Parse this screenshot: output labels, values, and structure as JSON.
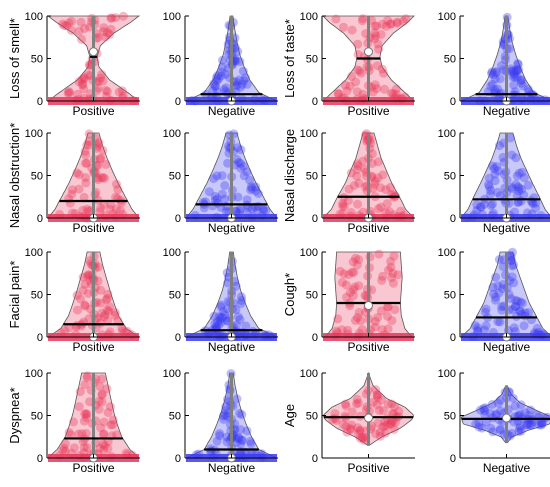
{
  "figure": {
    "colors": {
      "positive": "#e8365a",
      "negative": "#3b3bf0",
      "median_line": "#000000",
      "iqr_line": "#808080",
      "background": "#ffffff"
    }
  },
  "chart_data": [
    {
      "type": "violin",
      "ylabel": "Loss of smell*",
      "x_label": "Positive",
      "ylim": [
        0,
        100
      ],
      "yticks": [
        0,
        50,
        100
      ],
      "group": "positive",
      "median_marker": 58,
      "mean_line": 52,
      "density": [
        [
          0,
          1.0
        ],
        [
          10,
          0.75
        ],
        [
          25,
          0.35
        ],
        [
          40,
          0.12
        ],
        [
          52,
          0.08
        ],
        [
          65,
          0.15
        ],
        [
          80,
          0.45
        ],
        [
          92,
          0.8
        ],
        [
          100,
          1.0
        ]
      ]
    },
    {
      "type": "violin",
      "ylabel": "",
      "x_label": "Negative",
      "ylim": [
        0,
        100
      ],
      "yticks": [
        0,
        50,
        100
      ],
      "group": "negative",
      "median_marker": 0,
      "mean_line": 8,
      "density": [
        [
          0,
          1.0
        ],
        [
          10,
          0.6
        ],
        [
          25,
          0.4
        ],
        [
          40,
          0.28
        ],
        [
          55,
          0.18
        ],
        [
          70,
          0.12
        ],
        [
          85,
          0.07
        ],
        [
          100,
          0.03
        ]
      ]
    },
    {
      "type": "violin",
      "ylabel": "Loss of taste*",
      "x_label": "Positive",
      "ylim": [
        0,
        100
      ],
      "yticks": [
        0,
        50,
        100
      ],
      "group": "positive",
      "median_marker": 58,
      "mean_line": 50,
      "density": [
        [
          0,
          1.0
        ],
        [
          10,
          0.8
        ],
        [
          25,
          0.5
        ],
        [
          40,
          0.3
        ],
        [
          52,
          0.25
        ],
        [
          65,
          0.3
        ],
        [
          80,
          0.55
        ],
        [
          92,
          0.85
        ],
        [
          100,
          1.0
        ]
      ]
    },
    {
      "type": "violin",
      "ylabel": "",
      "x_label": "Negative",
      "ylim": [
        0,
        100
      ],
      "yticks": [
        0,
        50,
        100
      ],
      "group": "negative",
      "median_marker": 0,
      "mean_line": 8,
      "density": [
        [
          0,
          1.0
        ],
        [
          10,
          0.6
        ],
        [
          25,
          0.42
        ],
        [
          40,
          0.3
        ],
        [
          55,
          0.2
        ],
        [
          70,
          0.12
        ],
        [
          85,
          0.07
        ],
        [
          100,
          0.03
        ]
      ]
    },
    {
      "type": "violin",
      "ylabel": "Nasal obstruction*",
      "x_label": "Positive",
      "ylim": [
        0,
        100
      ],
      "yticks": [
        0,
        50,
        100
      ],
      "group": "positive",
      "median_marker": 0,
      "mean_line": 20,
      "density": [
        [
          0,
          1.0
        ],
        [
          10,
          0.85
        ],
        [
          25,
          0.7
        ],
        [
          40,
          0.55
        ],
        [
          55,
          0.42
        ],
        [
          70,
          0.3
        ],
        [
          85,
          0.2
        ],
        [
          100,
          0.12
        ]
      ]
    },
    {
      "type": "violin",
      "ylabel": "",
      "x_label": "Negative",
      "ylim": [
        0,
        100
      ],
      "yticks": [
        0,
        50,
        100
      ],
      "group": "negative",
      "median_marker": 0,
      "mean_line": 16,
      "density": [
        [
          0,
          1.0
        ],
        [
          10,
          0.85
        ],
        [
          25,
          0.7
        ],
        [
          40,
          0.55
        ],
        [
          55,
          0.42
        ],
        [
          70,
          0.3
        ],
        [
          85,
          0.2
        ],
        [
          100,
          0.12
        ]
      ]
    },
    {
      "type": "violin",
      "ylabel": "Nasal discharge",
      "x_label": "Positive",
      "ylim": [
        0,
        100
      ],
      "yticks": [
        0,
        50,
        100
      ],
      "group": "positive",
      "median_marker": 0,
      "mean_line": 25,
      "density": [
        [
          0,
          1.0
        ],
        [
          10,
          0.82
        ],
        [
          25,
          0.68
        ],
        [
          40,
          0.52
        ],
        [
          55,
          0.4
        ],
        [
          70,
          0.28
        ],
        [
          85,
          0.2
        ],
        [
          100,
          0.12
        ]
      ]
    },
    {
      "type": "violin",
      "ylabel": "",
      "x_label": "Negative",
      "ylim": [
        0,
        100
      ],
      "yticks": [
        0,
        50,
        100
      ],
      "group": "negative",
      "median_marker": 0,
      "mean_line": 22,
      "density": [
        [
          0,
          1.0
        ],
        [
          10,
          0.85
        ],
        [
          25,
          0.72
        ],
        [
          40,
          0.58
        ],
        [
          55,
          0.45
        ],
        [
          70,
          0.32
        ],
        [
          85,
          0.22
        ],
        [
          100,
          0.14
        ]
      ]
    },
    {
      "type": "violin",
      "ylabel": "Facial pain*",
      "x_label": "Positive",
      "ylim": [
        0,
        100
      ],
      "yticks": [
        0,
        50,
        100
      ],
      "group": "positive",
      "median_marker": 0,
      "mean_line": 15,
      "density": [
        [
          0,
          1.0
        ],
        [
          10,
          0.72
        ],
        [
          25,
          0.55
        ],
        [
          40,
          0.45
        ],
        [
          55,
          0.36
        ],
        [
          70,
          0.28
        ],
        [
          85,
          0.2
        ],
        [
          100,
          0.14
        ]
      ]
    },
    {
      "type": "violin",
      "ylabel": "",
      "x_label": "Negative",
      "ylim": [
        0,
        100
      ],
      "yticks": [
        0,
        50,
        100
      ],
      "group": "negative",
      "median_marker": 0,
      "mean_line": 8,
      "density": [
        [
          0,
          1.0
        ],
        [
          10,
          0.6
        ],
        [
          25,
          0.42
        ],
        [
          40,
          0.3
        ],
        [
          55,
          0.2
        ],
        [
          70,
          0.13
        ],
        [
          85,
          0.08
        ],
        [
          100,
          0.04
        ]
      ]
    },
    {
      "type": "violin",
      "ylabel": "Cough*",
      "x_label": "Positive",
      "ylim": [
        0,
        100
      ],
      "yticks": [
        0,
        50,
        100
      ],
      "group": "positive",
      "median_marker": 37,
      "mean_line": 40,
      "density": [
        [
          0,
          0.95
        ],
        [
          10,
          0.8
        ],
        [
          25,
          0.72
        ],
        [
          40,
          0.7
        ],
        [
          55,
          0.72
        ],
        [
          70,
          0.74
        ],
        [
          85,
          0.72
        ],
        [
          100,
          0.7
        ]
      ]
    },
    {
      "type": "violin",
      "ylabel": "",
      "x_label": "Negative",
      "ylim": [
        0,
        100
      ],
      "yticks": [
        0,
        50,
        100
      ],
      "group": "negative",
      "median_marker": 0,
      "mean_line": 23,
      "density": [
        [
          0,
          1.0
        ],
        [
          10,
          0.8
        ],
        [
          25,
          0.65
        ],
        [
          40,
          0.5
        ],
        [
          55,
          0.4
        ],
        [
          70,
          0.3
        ],
        [
          85,
          0.2
        ],
        [
          100,
          0.14
        ]
      ]
    },
    {
      "type": "violin",
      "ylabel": "Dyspnea*",
      "x_label": "Positive",
      "ylim": [
        0,
        100
      ],
      "yticks": [
        0,
        50,
        100
      ],
      "group": "positive",
      "median_marker": 0,
      "mean_line": 23,
      "density": [
        [
          0,
          1.0
        ],
        [
          10,
          0.8
        ],
        [
          25,
          0.62
        ],
        [
          40,
          0.52
        ],
        [
          55,
          0.44
        ],
        [
          70,
          0.38
        ],
        [
          85,
          0.32
        ],
        [
          100,
          0.26
        ]
      ]
    },
    {
      "type": "violin",
      "ylabel": "",
      "x_label": "Negative",
      "ylim": [
        0,
        100
      ],
      "yticks": [
        0,
        50,
        100
      ],
      "group": "negative",
      "median_marker": 0,
      "mean_line": 10,
      "density": [
        [
          0,
          1.0
        ],
        [
          10,
          0.6
        ],
        [
          25,
          0.44
        ],
        [
          40,
          0.32
        ],
        [
          55,
          0.22
        ],
        [
          70,
          0.14
        ],
        [
          85,
          0.08
        ],
        [
          100,
          0.04
        ]
      ]
    },
    {
      "type": "violin",
      "ylabel": "Age",
      "x_label": "Positive",
      "ylim": [
        0,
        100
      ],
      "yticks": [
        0,
        50,
        100
      ],
      "group": "positive",
      "median_marker": 47,
      "mean_line": 48,
      "density": [
        [
          15,
          0.02
        ],
        [
          25,
          0.3
        ],
        [
          35,
          0.7
        ],
        [
          45,
          0.95
        ],
        [
          50,
          1.0
        ],
        [
          60,
          0.8
        ],
        [
          70,
          0.4
        ],
        [
          85,
          0.1
        ],
        [
          100,
          0.0
        ]
      ]
    },
    {
      "type": "violin",
      "ylabel": "",
      "x_label": "Negative",
      "ylim": [
        0,
        100
      ],
      "yticks": [
        0,
        50,
        100
      ],
      "group": "negative",
      "median_marker": 47,
      "mean_line": 46,
      "density": [
        [
          18,
          0.02
        ],
        [
          25,
          0.12
        ],
        [
          33,
          0.5
        ],
        [
          40,
          0.95
        ],
        [
          48,
          1.0
        ],
        [
          55,
          0.7
        ],
        [
          65,
          0.3
        ],
        [
          75,
          0.1
        ],
        [
          85,
          0.02
        ]
      ]
    }
  ]
}
